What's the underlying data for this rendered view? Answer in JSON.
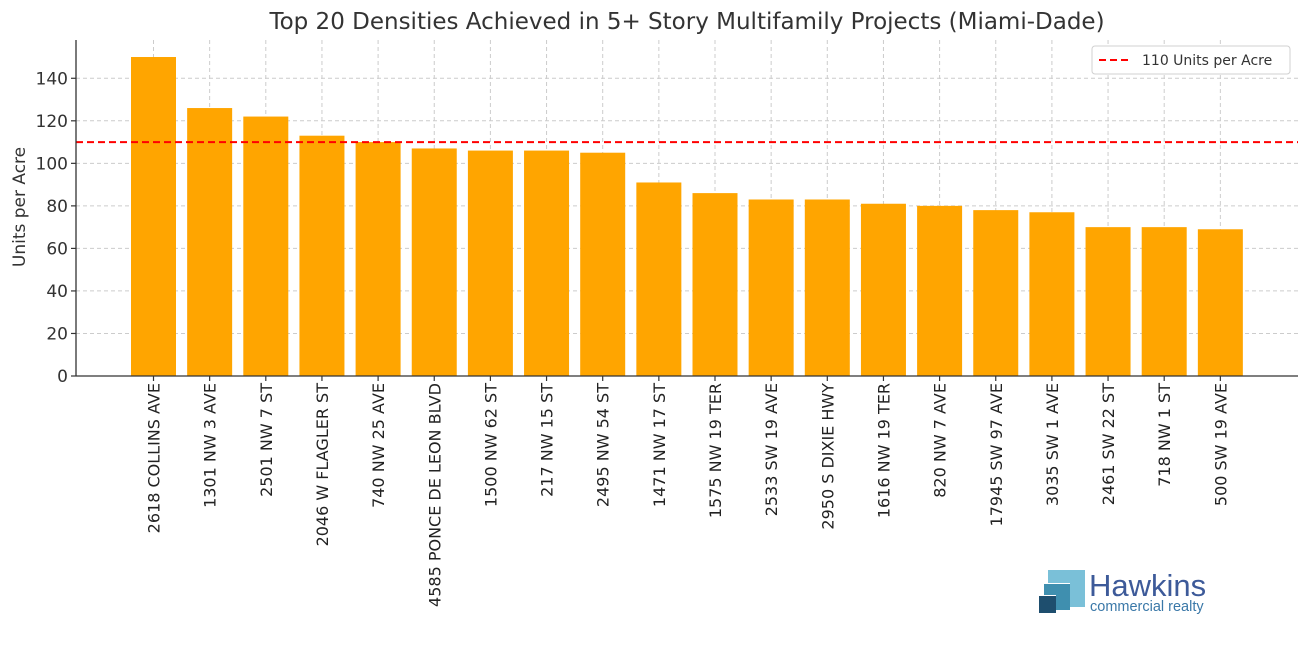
{
  "chart_data": {
    "type": "bar",
    "title": "Top 20 Densities Achieved in 5+ Story Multifamily Projects (Miami-Dade)",
    "xlabel": "",
    "ylabel": "Units per Acre",
    "ylim": [
      0,
      158
    ],
    "yticks": [
      0,
      20,
      40,
      60,
      80,
      100,
      120,
      140
    ],
    "grid": true,
    "bar_color": "#FFA500",
    "categories": [
      "2618 COLLINS AVE",
      "1301 NW 3 AVE",
      "2501 NW 7 ST",
      "2046 W FLAGLER ST",
      "740 NW 25 AVE",
      "4585 PONCE DE LEON BLVD",
      "1500 NW 62 ST",
      "217 NW 15 ST",
      "2495 NW 54 ST",
      "1471 NW 17 ST",
      "1575 NW 19 TER",
      "2533 SW 19 AVE",
      "2950 S DIXIE HWY",
      "1616 NW 19 TER",
      "820 NW 7 AVE",
      "17945 SW 97 AVE",
      "3035 SW 1 AVE",
      "2461 SW 22 ST",
      "718 NW 1 ST",
      "500 SW 19 AVE"
    ],
    "values": [
      150,
      126,
      122,
      113,
      110,
      107,
      106,
      106,
      105,
      91,
      86,
      83,
      83,
      81,
      80,
      78,
      77,
      70,
      70,
      69
    ],
    "reference_line": {
      "value": 110,
      "label": "110 Units per Acre",
      "color": "#FF0000",
      "style": "dashed"
    },
    "legend_position": "top-right"
  },
  "logo": {
    "name": "Hawkins",
    "tagline": "commercial realty",
    "name_color": "#3D5A99",
    "tagline_color": "#3A78A8"
  }
}
